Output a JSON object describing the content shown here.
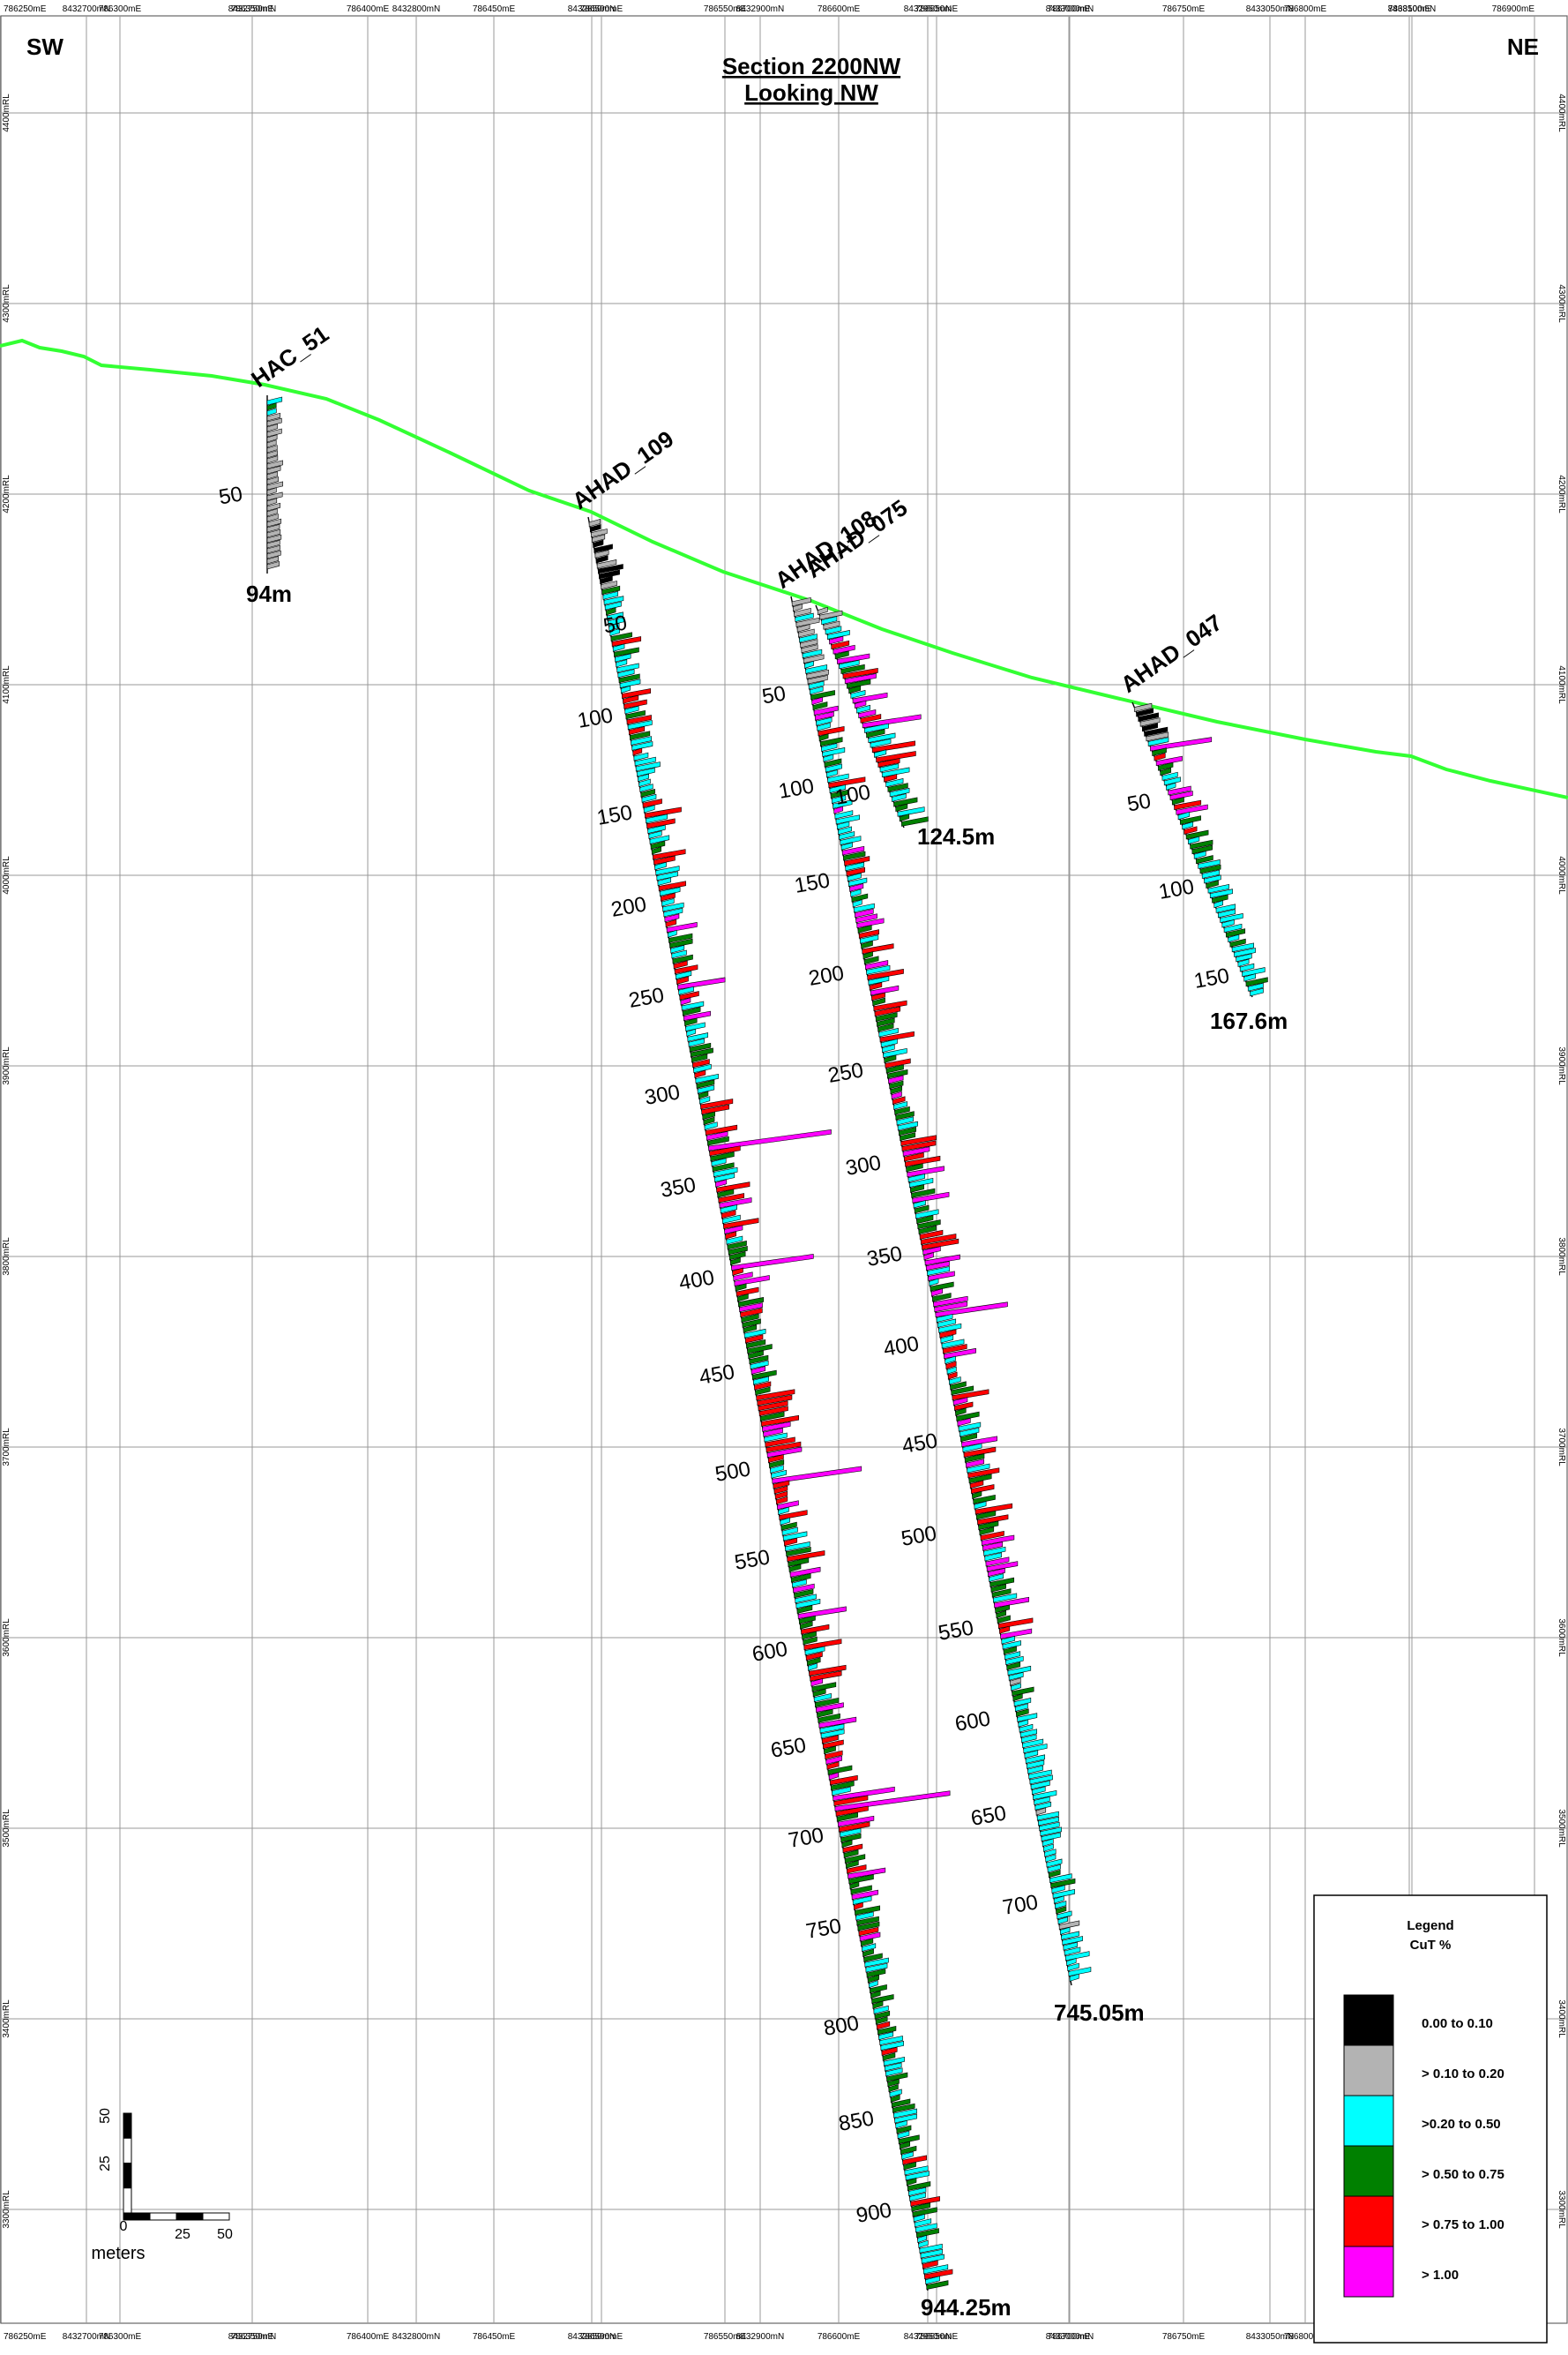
{
  "header": {
    "left": "SW",
    "right": "NE",
    "title": "Section 2200NW",
    "subtitle": "Looking NW"
  },
  "axis_top": [
    "786250mE",
    "8432700mN",
    "786300mE",
    "8432750mN",
    "786350mE",
    "786400mE",
    "8432800mN",
    "786450mE",
    "8432850mN",
    "786500mE",
    "786550mE",
    "8432900mN",
    "786600mE",
    "8432950mN",
    "786650mE",
    "786700mE",
    "8433000mN",
    "786750mE",
    "8433050mN",
    "786800mE",
    "786850mE",
    "8433100mN",
    "786900mE"
  ],
  "axis_right": [
    "4400mRL",
    "4300mRL",
    "4200mRL",
    "4100mRL",
    "4000mRL",
    "3900mRL",
    "3800mRL",
    "3700mRL",
    "3600mRL",
    "3500mRL",
    "3400mRL",
    "3300mRL"
  ],
  "topography_color": "#33ff33",
  "holes": [
    {
      "name": "HAC_51",
      "end_label": "94m",
      "depth_labels": [
        "50"
      ]
    },
    {
      "name": "AHAD_109",
      "end_label": "",
      "depth_labels": [
        "50",
        "100",
        "150",
        "200",
        "250",
        "300",
        "350",
        "400",
        "450",
        "500",
        "550",
        "600",
        "650",
        "700",
        "750",
        "800",
        "850",
        "900"
      ]
    },
    {
      "name": "AHAD_108",
      "end_label": "944.25m",
      "depth_labels": [
        "50",
        "100",
        "150",
        "200",
        "250",
        "300",
        "350",
        "400",
        "450",
        "500",
        "550",
        "600",
        "650",
        "700"
      ]
    },
    {
      "name": "AHAD_075",
      "end_label": "124.5m",
      "depth_labels": [
        "100"
      ]
    },
    {
      "name": "AHAD_047",
      "end_label": "167.6m",
      "depth_labels": [
        "50",
        "100",
        "150"
      ]
    },
    {
      "name": "",
      "end_label": "745.05m",
      "depth_labels": []
    }
  ],
  "scale_bar": {
    "vertical_labels": [
      "50",
      "25",
      "0"
    ],
    "horizontal_labels": [
      "25",
      "50"
    ],
    "unit": "meters"
  },
  "legend": {
    "title": "Legend",
    "subtitle": "CuT %",
    "items": [
      {
        "label": "0.00 to 0.10",
        "color": "#000000"
      },
      {
        "label": "> 0.10 to 0.20",
        "color": "#b3b3b3"
      },
      {
        "label": ">0.20 to 0.50",
        "color": "#00ffff"
      },
      {
        "label": "> 0.50 to 0.75",
        "color": "#008000"
      },
      {
        "label": "> 0.75 to 1.00",
        "color": "#ff0000"
      },
      {
        "label": "> 1.00",
        "color": "#ff00ff"
      }
    ]
  }
}
